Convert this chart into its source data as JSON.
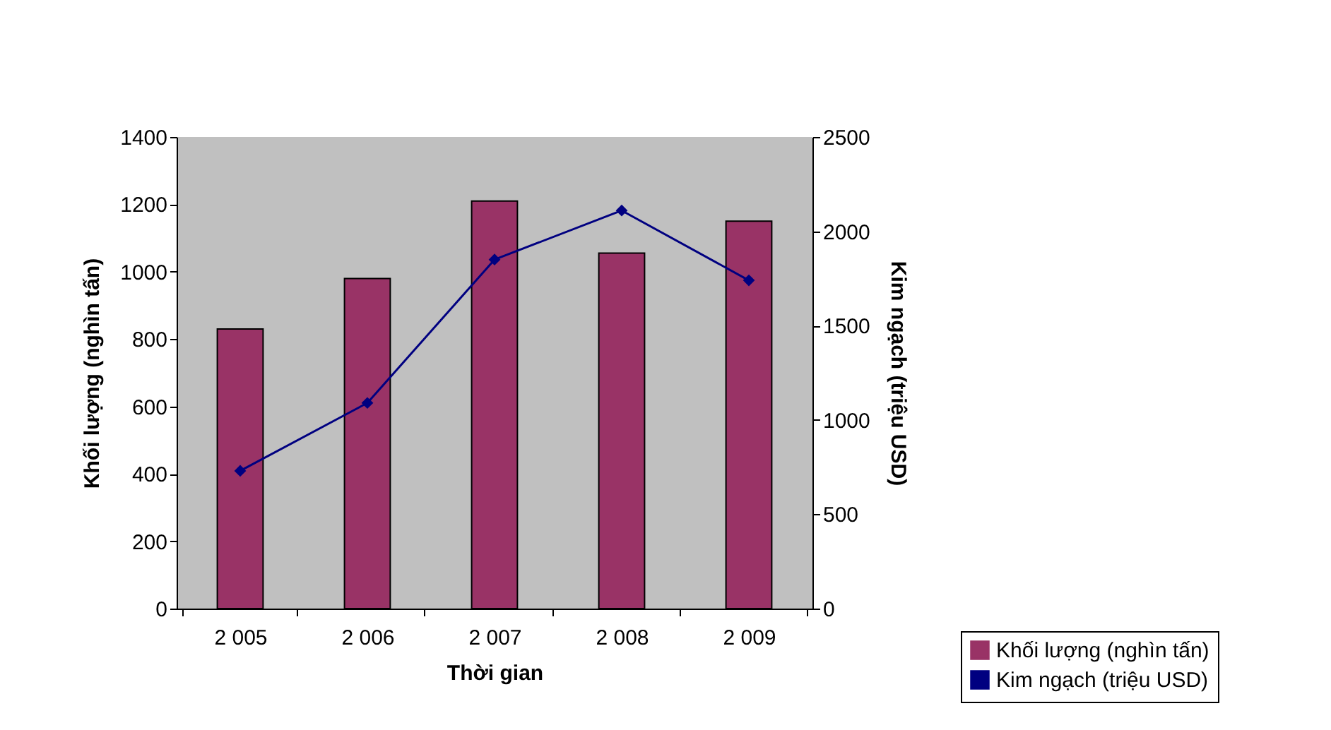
{
  "chart_data": {
    "type": "bar",
    "xlabel": "Thời gian",
    "ylabel": "Khối lượng (nghìn tấn)",
    "y2label": "Kim ngạch (triệu USD)",
    "categories": [
      "2 005",
      "2 006",
      "2 007",
      "2 008",
      "2 009"
    ],
    "series": [
      {
        "name": "Khối lượng (nghìn tấn)",
        "color": "#993366",
        "values": [
          830,
          980,
          1210,
          1055,
          1150
        ]
      },
      {
        "name": "Kim ngạch (triệu USD)",
        "type": "line",
        "axis": "y2",
        "color": "#000080",
        "marker": "diamond",
        "values": [
          730,
          1090,
          1850,
          2110,
          1740
        ]
      }
    ],
    "ylim": [
      0,
      1400
    ],
    "yticks": [
      0,
      200,
      400,
      600,
      800,
      1000,
      1200,
      1400
    ],
    "y2lim": [
      0,
      2500
    ],
    "y2ticks": [
      0,
      500,
      1000,
      1500,
      2000,
      2500
    ],
    "grid": false,
    "legend": "bottom right"
  }
}
